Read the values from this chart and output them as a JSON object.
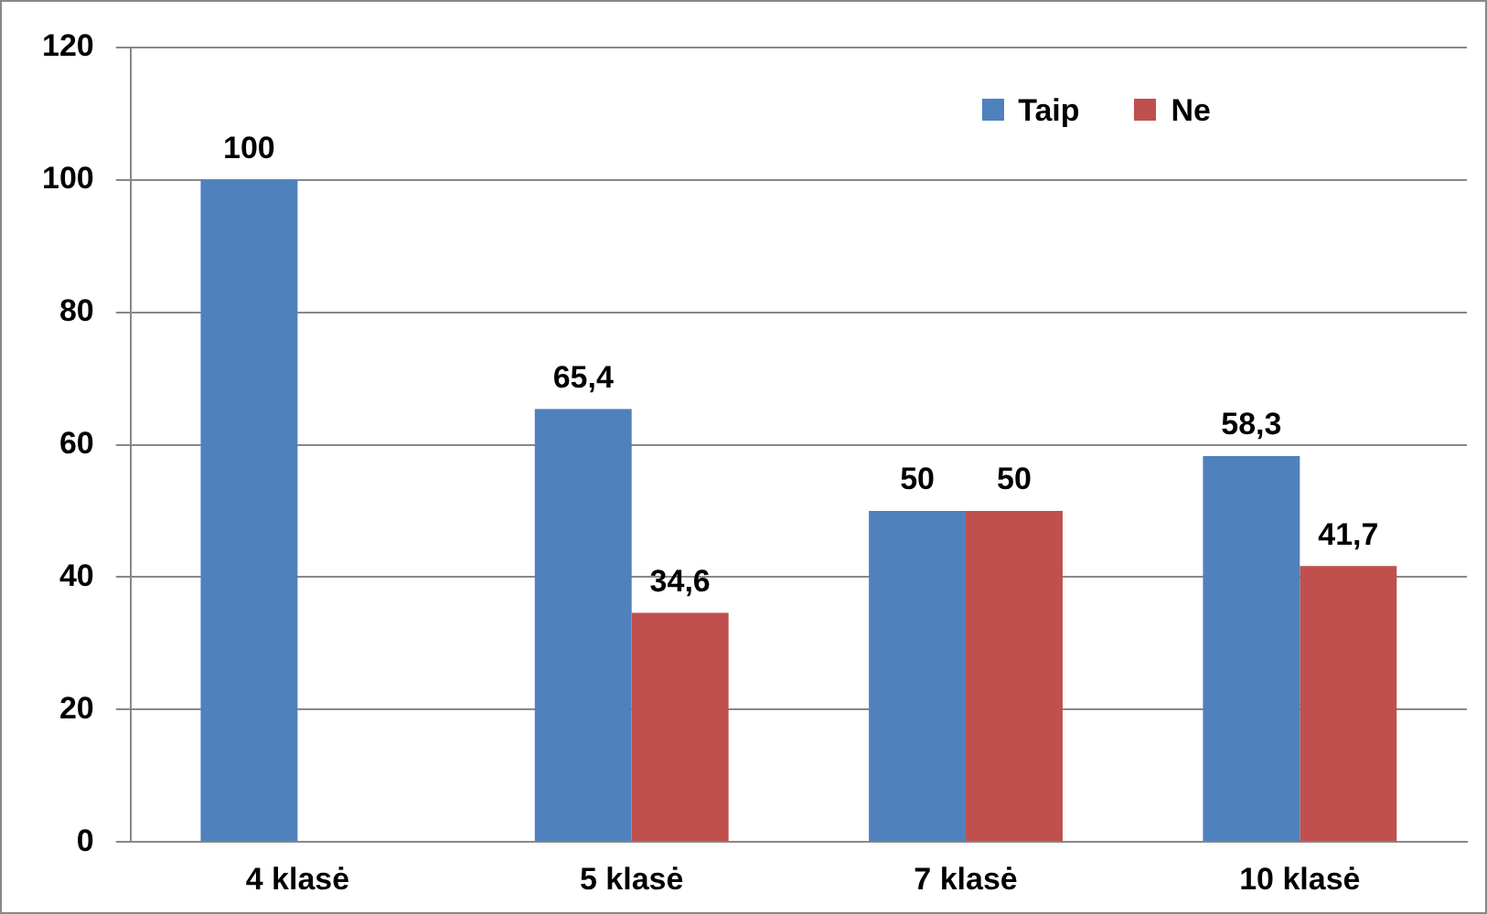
{
  "chart_data": {
    "type": "bar",
    "categories": [
      "4 klasė",
      "5 klasė",
      "7 klasė",
      "10 klasė"
    ],
    "series": [
      {
        "name": "Taip",
        "color": "#4f81bd",
        "values": [
          100,
          65.4,
          50,
          58.3
        ],
        "value_labels": [
          "100",
          "65,4",
          "50",
          "58,3"
        ]
      },
      {
        "name": "Ne",
        "color": "#c0504d",
        "values": [
          null,
          34.6,
          50,
          41.7
        ],
        "value_labels": [
          null,
          "34,6",
          "50",
          "41,7"
        ]
      }
    ],
    "ylim": [
      0,
      120
    ],
    "yticks": [
      0,
      20,
      40,
      60,
      80,
      100,
      120
    ],
    "grid": "y",
    "legend": "top right"
  }
}
